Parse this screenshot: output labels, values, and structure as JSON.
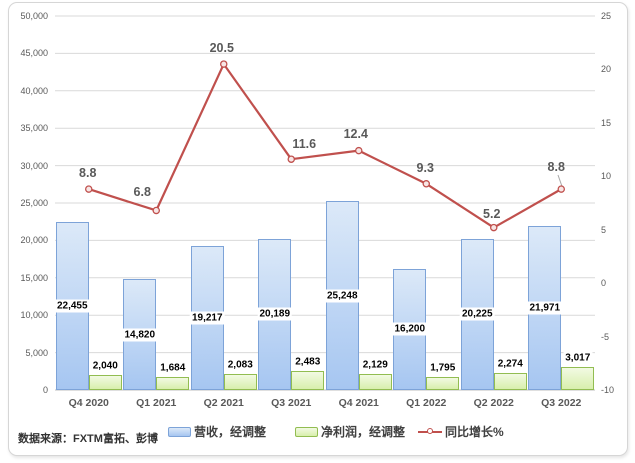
{
  "chart_data": {
    "type": "combo-bar-line",
    "title": "",
    "categories": [
      "Q4 2020",
      "Q1 2021",
      "Q2 2021",
      "Q3 2021",
      "Q4 2021",
      "Q1 2022",
      "Q2 2022",
      "Q3 2022"
    ],
    "series": [
      {
        "name": "营收，经调整",
        "type": "bar",
        "axis": "left",
        "values": [
          22455,
          14820,
          19217,
          20189,
          25248,
          16200,
          20225,
          21971
        ],
        "labels": [
          "22,455",
          "14,820",
          "19,217",
          "20,189",
          "25,248",
          "16,200",
          "20,225",
          "21,971"
        ]
      },
      {
        "name": "净利润，经调整",
        "type": "bar",
        "axis": "left",
        "values": [
          2040,
          1684,
          2083,
          2483,
          2129,
          1795,
          2274,
          3017
        ],
        "labels": [
          "2,040",
          "1,684",
          "2,083",
          "2,483",
          "2,129",
          "1,795",
          "2,274",
          "3,017"
        ]
      },
      {
        "name": "同比增长%",
        "type": "line",
        "axis": "right",
        "values": [
          8.8,
          6.8,
          20.5,
          11.6,
          12.4,
          9.3,
          5.2,
          8.8
        ],
        "labels": [
          "8.8",
          "6.8",
          "20.5",
          "11.6",
          "12.4",
          "9.3",
          "5.2",
          "8.8"
        ]
      }
    ],
    "left_axis": {
      "min": 0,
      "max": 50000,
      "step": 5000,
      "tick_labels": [
        "50,000",
        "45,000",
        "40,000",
        "35,000",
        "30,000",
        "25,000",
        "20,000",
        "15,000",
        "10,000",
        "5,000",
        "0"
      ]
    },
    "right_axis": {
      "min": -10,
      "max": 25,
      "step": 5,
      "tick_labels": [
        "25",
        "20",
        "15",
        "10",
        "5",
        "0",
        "-5",
        "-10"
      ]
    },
    "grid": true,
    "legend_position": "bottom"
  },
  "legend": {
    "items": [
      {
        "label": "营收，经调整",
        "swatch": "bar-blue"
      },
      {
        "label": "净利润，经调整",
        "swatch": "bar-green"
      },
      {
        "label": "同比增长%",
        "swatch": "line-red"
      }
    ]
  },
  "footer": {
    "source_note": "数据来源：FXTM富拓、彭博"
  },
  "colors": {
    "bar_revenue_top": "#dce9f8",
    "bar_revenue_bottom": "#a6c6f1",
    "bar_revenue_border": "#7da3d8",
    "bar_profit_top": "#f2fae3",
    "bar_profit_bottom": "#d8efac",
    "bar_profit_border": "#92bd51",
    "line": "#c0504d",
    "marker_fill": "#f7e6e5",
    "grid": "#d9d9d9",
    "axis_line": "#bfbfbf",
    "tick_text": "#595959",
    "data_label_text": "#000000",
    "line_label_text": "#595959",
    "card_border": "#d6d6d6"
  }
}
